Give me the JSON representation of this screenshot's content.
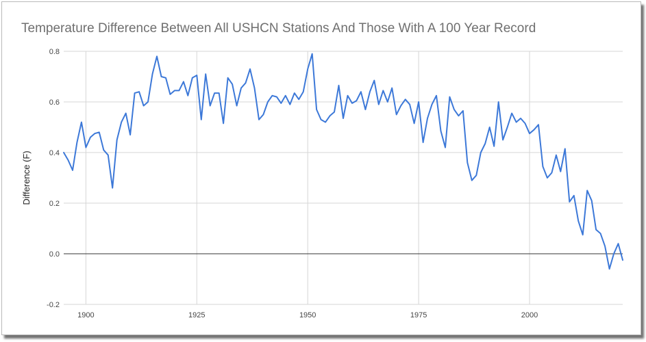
{
  "chart_data": {
    "type": "line",
    "title": "Temperature Difference Between All USHCN Stations And Those With  A 100 Year Record",
    "xlabel": "",
    "ylabel": "Difference (F)",
    "xlim": [
      1895,
      2021
    ],
    "ylim": [
      -0.2,
      0.8
    ],
    "x_ticks": [
      1900,
      1925,
      1950,
      1975,
      2000
    ],
    "y_ticks": [
      -0.2,
      0.0,
      0.2,
      0.4,
      0.6,
      0.8
    ],
    "y_tick_labels": [
      "-0.2",
      "0.0",
      "0.2",
      "0.4",
      "0.6",
      "0.8"
    ],
    "grid": true,
    "legend": "none",
    "series": [
      {
        "color": "#3c78d8",
        "x": [
          1895,
          1896,
          1897,
          1898,
          1899,
          1900,
          1901,
          1902,
          1903,
          1904,
          1905,
          1906,
          1907,
          1908,
          1909,
          1910,
          1911,
          1912,
          1913,
          1914,
          1915,
          1916,
          1917,
          1918,
          1919,
          1920,
          1921,
          1922,
          1923,
          1924,
          1925,
          1926,
          1927,
          1928,
          1929,
          1930,
          1931,
          1932,
          1933,
          1934,
          1935,
          1936,
          1937,
          1938,
          1939,
          1940,
          1941,
          1942,
          1943,
          1944,
          1945,
          1946,
          1947,
          1948,
          1949,
          1950,
          1951,
          1952,
          1953,
          1954,
          1955,
          1956,
          1957,
          1958,
          1959,
          1960,
          1961,
          1962,
          1963,
          1964,
          1965,
          1966,
          1967,
          1968,
          1969,
          1970,
          1971,
          1972,
          1973,
          1974,
          1975,
          1976,
          1977,
          1978,
          1979,
          1980,
          1981,
          1982,
          1983,
          1984,
          1985,
          1986,
          1987,
          1988,
          1989,
          1990,
          1991,
          1992,
          1993,
          1994,
          1995,
          1996,
          1997,
          1998,
          1999,
          2000,
          2001,
          2002,
          2003,
          2004,
          2005,
          2006,
          2007,
          2008,
          2009,
          2010,
          2011,
          2012,
          2013,
          2014,
          2015,
          2016,
          2017,
          2018,
          2019,
          2020,
          2021
        ],
        "y": [
          0.4,
          0.37,
          0.33,
          0.44,
          0.52,
          0.42,
          0.46,
          0.475,
          0.48,
          0.41,
          0.39,
          0.26,
          0.45,
          0.52,
          0.555,
          0.47,
          0.635,
          0.64,
          0.585,
          0.6,
          0.71,
          0.78,
          0.7,
          0.695,
          0.63,
          0.645,
          0.645,
          0.68,
          0.625,
          0.695,
          0.705,
          0.53,
          0.71,
          0.585,
          0.635,
          0.635,
          0.515,
          0.695,
          0.67,
          0.585,
          0.655,
          0.675,
          0.73,
          0.655,
          0.53,
          0.55,
          0.6,
          0.625,
          0.62,
          0.595,
          0.625,
          0.59,
          0.635,
          0.61,
          0.64,
          0.73,
          0.79,
          0.57,
          0.53,
          0.52,
          0.545,
          0.56,
          0.665,
          0.535,
          0.625,
          0.595,
          0.605,
          0.64,
          0.57,
          0.64,
          0.685,
          0.59,
          0.645,
          0.6,
          0.655,
          0.55,
          0.585,
          0.61,
          0.59,
          0.515,
          0.6,
          0.44,
          0.535,
          0.59,
          0.625,
          0.485,
          0.42,
          0.62,
          0.57,
          0.545,
          0.565,
          0.36,
          0.29,
          0.31,
          0.4,
          0.435,
          0.5,
          0.425,
          0.6,
          0.45,
          0.5,
          0.555,
          0.52,
          0.535,
          0.515,
          0.475,
          0.49,
          0.51,
          0.345,
          0.3,
          0.32,
          0.39,
          0.325,
          0.415,
          0.205,
          0.23,
          0.13,
          0.075,
          0.25,
          0.21,
          0.095,
          0.08,
          0.03,
          -0.06,
          0.0,
          0.04,
          -0.025
        ]
      }
    ]
  }
}
